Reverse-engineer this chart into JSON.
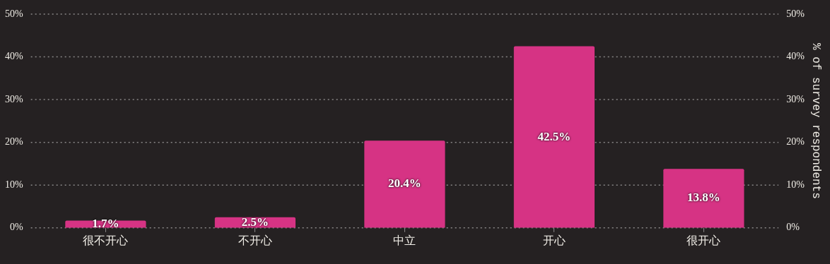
{
  "chart_data": {
    "type": "bar",
    "categories": [
      "很不开心",
      "不开心",
      "中立",
      "开心",
      "很开心"
    ],
    "values": [
      1.7,
      2.5,
      20.4,
      42.5,
      13.8
    ],
    "value_labels": [
      "1.7%",
      "2.5%",
      "20.4%",
      "42.5%",
      "13.8%"
    ],
    "color": "#d63384",
    "y2label": "% of survey respondents",
    "ylim": [
      0,
      50
    ],
    "yticks": [
      {
        "value": 0,
        "label": "0%"
      },
      {
        "value": 10,
        "label": "10%"
      },
      {
        "value": 20,
        "label": "20%"
      },
      {
        "value": 30,
        "label": "30%"
      },
      {
        "value": 40,
        "label": "40%"
      },
      {
        "value": 50,
        "label": "50%"
      }
    ],
    "y2lim": [
      0,
      50
    ],
    "y2ticks": [
      {
        "value": 0,
        "label": "0%"
      },
      {
        "value": 10,
        "label": "10%"
      },
      {
        "value": 20,
        "label": "20%"
      },
      {
        "value": 30,
        "label": "30%"
      },
      {
        "value": 40,
        "label": "40%"
      },
      {
        "value": 50,
        "label": "50%"
      }
    ],
    "grid": "y",
    "legend": false
  }
}
